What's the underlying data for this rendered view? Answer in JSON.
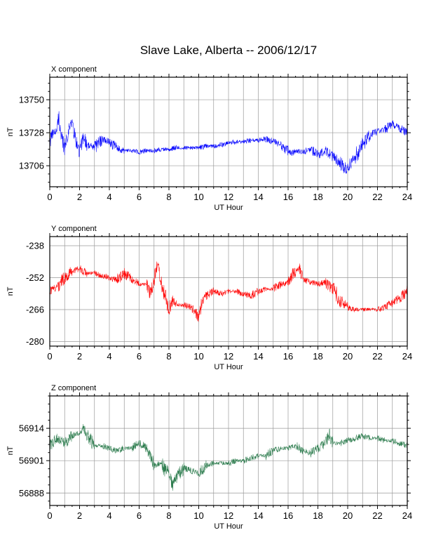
{
  "figure": {
    "title": "Slave Lake, Alberta -- 2006/12/17"
  },
  "chart_data": [
    {
      "type": "line",
      "panel_title": "X component",
      "xlabel": "UT Hour",
      "ylabel": "nT",
      "xlim": [
        0,
        24
      ],
      "ylim": [
        13692,
        13765
      ],
      "xticks": [
        0,
        2,
        4,
        6,
        8,
        10,
        12,
        14,
        16,
        18,
        20,
        22,
        24
      ],
      "yticks": [
        13706,
        13728,
        13750
      ],
      "grid": true,
      "color": "#0000ff",
      "series": [
        {
          "x": [
            0,
            0.25,
            0.5,
            0.6,
            0.75,
            1,
            1.25,
            1.5,
            1.75,
            2,
            2.25,
            2.5,
            3,
            3.5,
            4,
            4.5,
            5,
            5.5,
            6,
            6.5,
            7,
            7.5,
            8,
            8.5,
            9,
            9.5,
            10,
            10.5,
            11,
            11.5,
            12,
            12.5,
            13,
            13.5,
            14,
            14.5,
            15,
            15.5,
            16,
            16.25,
            16.5,
            17,
            17.5,
            18,
            18.5,
            19,
            19.5,
            20,
            20.25,
            20.5,
            21,
            21.5,
            22,
            22.5,
            23,
            23.5,
            24
          ],
          "y": [
            13722,
            13728,
            13730,
            13740,
            13725,
            13718,
            13730,
            13735,
            13722,
            13715,
            13726,
            13720,
            13718,
            13724,
            13722,
            13718,
            13716,
            13716,
            13715,
            13716,
            13716,
            13717,
            13717,
            13718,
            13718,
            13718,
            13718,
            13719,
            13719,
            13720,
            13721,
            13722,
            13722,
            13723,
            13723,
            13724,
            13722,
            13720,
            13716,
            13714,
            13716,
            13715,
            13717,
            13713,
            13716,
            13712,
            13708,
            13702,
            13710,
            13712,
            13720,
            13726,
            13729,
            13730,
            13734,
            13731,
            13728
          ]
        }
      ]
    },
    {
      "type": "line",
      "panel_title": "Y component",
      "xlabel": "UT Hour",
      "ylabel": "nT",
      "xlim": [
        0,
        24
      ],
      "ylim": [
        -282,
        -234
      ],
      "xticks": [
        0,
        2,
        4,
        6,
        8,
        10,
        12,
        14,
        16,
        18,
        20,
        22,
        24
      ],
      "yticks": [
        -238,
        -252,
        -266,
        -280
      ],
      "grid": true,
      "color": "#ff0000",
      "series": [
        {
          "x": [
            0,
            0.5,
            1,
            1.5,
            2,
            2.5,
            3,
            3.5,
            4,
            4.5,
            5,
            5.5,
            6,
            6.5,
            6.75,
            7,
            7.25,
            7.5,
            7.75,
            8,
            8.25,
            8.5,
            9,
            9.5,
            9.75,
            10,
            10.25,
            10.5,
            11,
            11.5,
            12,
            12.5,
            13,
            13.5,
            14,
            14.5,
            15,
            15.5,
            16,
            16.5,
            16.75,
            17,
            17.5,
            18,
            18.5,
            19,
            19.5,
            20,
            20.5,
            21,
            21.5,
            22,
            22.5,
            23,
            23.5,
            24
          ],
          "y": [
            -258,
            -256,
            -252,
            -249,
            -248,
            -250,
            -250,
            -251,
            -252,
            -253,
            -250,
            -253,
            -255,
            -255,
            -259,
            -253,
            -246,
            -255,
            -260,
            -266,
            -262,
            -264,
            -264,
            -265,
            -267,
            -270,
            -262,
            -260,
            -258,
            -259,
            -258,
            -258,
            -259,
            -260,
            -258,
            -257,
            -257,
            -255,
            -254,
            -249,
            -248,
            -253,
            -254,
            -255,
            -254,
            -257,
            -262,
            -265,
            -266,
            -266,
            -266,
            -266,
            -265,
            -263,
            -261,
            -258
          ]
        }
      ]
    },
    {
      "type": "line",
      "panel_title": "Z component",
      "xlabel": "UT Hour",
      "ylabel": "nT",
      "xlim": [
        0,
        24
      ],
      "ylim": [
        56883,
        56927
      ],
      "xticks": [
        0,
        2,
        4,
        6,
        8,
        10,
        12,
        14,
        16,
        18,
        20,
        22,
        24
      ],
      "yticks": [
        56888,
        56901,
        56914
      ],
      "grid": true,
      "color": "#2e7d4f",
      "series": [
        {
          "x": [
            0,
            0.5,
            1,
            1.5,
            2,
            2.25,
            2.5,
            3,
            3.5,
            4,
            4.5,
            5,
            5.5,
            6,
            6.5,
            6.75,
            7,
            7.5,
            8,
            8.25,
            8.5,
            9,
            9.5,
            10,
            10.5,
            11,
            11.5,
            12,
            12.5,
            13,
            13.5,
            14,
            14.5,
            15,
            15.5,
            16,
            16.5,
            17,
            17.5,
            18,
            18.5,
            18.75,
            19,
            19.5,
            20,
            20.5,
            21,
            21.5,
            22,
            22.5,
            23,
            23.5,
            24
          ],
          "y": [
            56907,
            56910,
            56908,
            56911,
            56912,
            56914,
            56911,
            56907,
            56907,
            56906,
            56905,
            56906,
            56906,
            56908,
            56906,
            56903,
            56899,
            56900,
            56895,
            56891,
            56894,
            56898,
            56897,
            56896,
            56899,
            56900,
            56900,
            56900,
            56901,
            56901,
            56902,
            56903,
            56903,
            56905,
            56906,
            56906,
            56907,
            56905,
            56904,
            56906,
            56908,
            56912,
            56908,
            56908,
            56909,
            56910,
            56911,
            56910,
            56910,
            56909,
            56909,
            56908,
            56907
          ]
        }
      ]
    }
  ]
}
